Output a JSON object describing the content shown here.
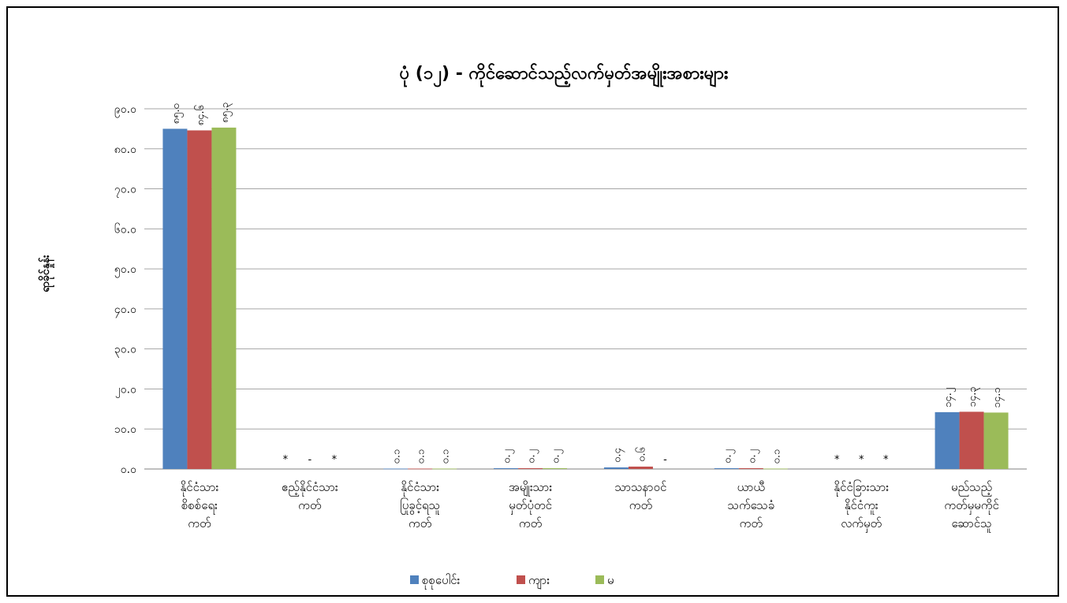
{
  "chart_data": {
    "type": "bar",
    "title": "ပုံ (၁၂) - ကိုင်ဆောင်သည့်လက်မှတ်အမျိုးအစားများ",
    "ylabel": "ရာခိုင်နှုန်း",
    "xlabel": "",
    "ylim": [
      0,
      90
    ],
    "yticks": [
      0,
      10,
      20,
      30,
      40,
      50,
      60,
      70,
      80,
      90
    ],
    "ytick_labels": [
      "၀.၀",
      "၁၀.၀",
      "၂၀.၀",
      "၃၀.၀",
      "၄၀.၀",
      "၅၀.၀",
      "၆၀.၀",
      "၇၀.၀",
      "၈၀.၀",
      "၉၀.၀"
    ],
    "grid": true,
    "legend_position": "bottom",
    "categories": [
      [
        "နိုင်ငံသား",
        "စိစစ်ရေး",
        "ကတ်"
      ],
      [
        "ဧည့်နိုင်ငံသား",
        "ကတ်"
      ],
      [
        "နိုင်ငံသား",
        "ပြုခွင့်ရသူ",
        "ကတ်"
      ],
      [
        "အမျိုးသား",
        "မှတ်ပုံတင်",
        "ကတ်"
      ],
      [
        "သာသနာဝင်",
        "ကတ်"
      ],
      [
        "ယာယီ",
        "သက်သေခံ",
        "ကတ်"
      ],
      [
        "နိုင်ငံခြားသား",
        "နိုင်ငံကူး",
        "လက်မှတ်"
      ],
      [
        "မည်သည့်",
        "ကတ်မှမကိုင်",
        "ဆောင်သူ"
      ]
    ],
    "series": [
      {
        "name": "စုစုပေါင်း",
        "color": "#4F81BD",
        "values": [
          85.0,
          null,
          0.1,
          0.2,
          0.4,
          0.2,
          null,
          14.2
        ],
        "labels": [
          "၈၅.၀",
          "*",
          "၀.၁",
          "၀.၂",
          "၀.၄",
          "၀.၂",
          "*",
          "၁၄.၂"
        ]
      },
      {
        "name": "ကျား",
        "color": "#C0504D",
        "values": [
          84.6,
          null,
          0.1,
          0.2,
          0.6,
          0.2,
          null,
          14.3
        ],
        "labels": [
          "၈၄.၆",
          "-",
          "၀.၁",
          "၀.၂",
          "၀.၆",
          "၀.၂",
          "*",
          "၁၄.၃"
        ]
      },
      {
        "name": "မ",
        "color": "#9BBB59",
        "values": [
          85.3,
          null,
          0.1,
          0.2,
          null,
          0.1,
          null,
          14.1
        ],
        "labels": [
          "၈၅.၃",
          "*",
          "၀.၁",
          "၀.၂",
          "-",
          "၀.၁",
          "*",
          "၁၄.၁"
        ]
      }
    ]
  }
}
